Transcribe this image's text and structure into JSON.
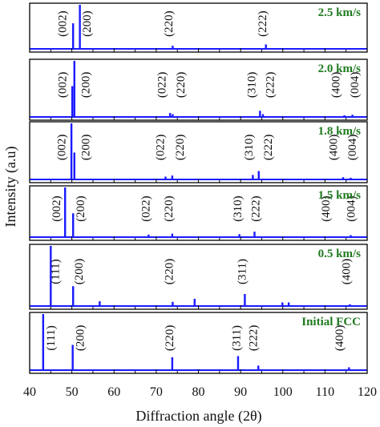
{
  "chart_data": {
    "type": "stacked-spectra",
    "xlabel": "Diffraction angle (2θ)",
    "ylabel": "Intensity (a.u)",
    "xlim": [
      40,
      120
    ],
    "xticks": [
      "40",
      "50",
      "60",
      "70",
      "80",
      "90",
      "100",
      "110",
      "120"
    ],
    "series_color": "#1a1aff",
    "label_color": "#1f7a1f",
    "panels": [
      {
        "name": "2.5 km/s",
        "peaks": [
          {
            "x": 50.3,
            "y": 0.58
          },
          {
            "x": 51.9,
            "y": 1.0
          },
          {
            "x": 73.9,
            "y": 0.07
          },
          {
            "x": 96.0,
            "y": 0.1
          }
        ],
        "labels": [
          {
            "text": "(002)",
            "x": 48.0
          },
          {
            "text": "(200)",
            "x": 53.8
          },
          {
            "text": "(220)",
            "x": 73.2
          },
          {
            "text": "(222)",
            "x": 95.4
          }
        ]
      },
      {
        "name": "2.0 km/s",
        "peaks": [
          {
            "x": 50.1,
            "y": 0.55
          },
          {
            "x": 50.6,
            "y": 1.0
          },
          {
            "x": 73.3,
            "y": 0.07
          },
          {
            "x": 73.9,
            "y": 0.05
          },
          {
            "x": 94.6,
            "y": 0.11
          },
          {
            "x": 95.3,
            "y": 0.05
          },
          {
            "x": 114.6,
            "y": 0.03
          },
          {
            "x": 116.5,
            "y": 0.04
          }
        ],
        "labels": [
          {
            "text": "(002)",
            "x": 48.0
          },
          {
            "text": "(200)",
            "x": 53.5
          },
          {
            "text": "(022)",
            "x": 71.6
          },
          {
            "text": "(220)",
            "x": 76.0
          },
          {
            "text": "(310)",
            "x": 92.8
          },
          {
            "text": "(222)",
            "x": 97.2
          },
          {
            "text": "(400)",
            "x": 112.8
          },
          {
            "text": "(004)",
            "x": 117.3
          }
        ]
      },
      {
        "name": "1.8 km/s",
        "peaks": [
          {
            "x": 49.9,
            "y": 1.0
          },
          {
            "x": 50.6,
            "y": 0.48
          },
          {
            "x": 72.2,
            "y": 0.05
          },
          {
            "x": 73.8,
            "y": 0.07
          },
          {
            "x": 92.9,
            "y": 0.08
          },
          {
            "x": 94.3,
            "y": 0.15
          },
          {
            "x": 114.3,
            "y": 0.04
          },
          {
            "x": 116.1,
            "y": 0.03
          }
        ],
        "labels": [
          {
            "text": "(002)",
            "x": 47.8
          },
          {
            "text": "(200)",
            "x": 53.5
          },
          {
            "text": "(022)",
            "x": 71.2
          },
          {
            "text": "(220)",
            "x": 75.8
          },
          {
            "text": "(310)",
            "x": 92.2
          },
          {
            "text": "(222)",
            "x": 96.7
          },
          {
            "text": "(400)",
            "x": 112.2
          },
          {
            "text": "(004)",
            "x": 116.7
          }
        ]
      },
      {
        "name": "1.5 km/s",
        "peaks": [
          {
            "x": 48.4,
            "y": 1.0
          },
          {
            "x": 50.3,
            "y": 0.48
          },
          {
            "x": 68.2,
            "y": 0.05
          },
          {
            "x": 73.8,
            "y": 0.07
          },
          {
            "x": 89.7,
            "y": 0.06
          },
          {
            "x": 93.3,
            "y": 0.11
          },
          {
            "x": 116.1,
            "y": 0.04
          }
        ],
        "labels": [
          {
            "text": "(002)",
            "x": 46.6
          },
          {
            "text": "(200)",
            "x": 52.3
          },
          {
            "text": "(022)",
            "x": 67.8
          },
          {
            "text": "(220)",
            "x": 73.2
          },
          {
            "text": "(310)",
            "x": 89.5
          },
          {
            "text": "(222)",
            "x": 93.8
          },
          {
            "text": "(400)",
            "x": 110.4
          },
          {
            "text": "(004)",
            "x": 116.4
          }
        ]
      },
      {
        "name": "0.5 km/s",
        "peaks": [
          {
            "x": 45.0,
            "y": 1.0
          },
          {
            "x": 50.3,
            "y": 0.33
          },
          {
            "x": 56.6,
            "y": 0.08
          },
          {
            "x": 73.9,
            "y": 0.07
          },
          {
            "x": 79.1,
            "y": 0.12
          },
          {
            "x": 91.0,
            "y": 0.2
          },
          {
            "x": 99.9,
            "y": 0.06
          },
          {
            "x": 101.4,
            "y": 0.06
          },
          {
            "x": 115.9,
            "y": 0.03
          }
        ],
        "labels": [
          {
            "text": "(111)",
            "x": 46.3
          },
          {
            "text": "(200)",
            "x": 51.9
          },
          {
            "text": "(220)",
            "x": 73.3
          },
          {
            "text": "(311)",
            "x": 90.6
          },
          {
            "text": "(400)",
            "x": 115.3
          }
        ]
      },
      {
        "name": "Initial FCC",
        "peaks": [
          {
            "x": 43.2,
            "y": 1.0
          },
          {
            "x": 50.2,
            "y": 0.45
          },
          {
            "x": 73.8,
            "y": 0.23
          },
          {
            "x": 89.4,
            "y": 0.25
          },
          {
            "x": 94.2,
            "y": 0.08
          },
          {
            "x": 115.7,
            "y": 0.05
          }
        ],
        "labels": [
          {
            "text": "(111)",
            "x": 45.2
          },
          {
            "text": "(200)",
            "x": 52.2
          },
          {
            "text": "(220)",
            "x": 73.4
          },
          {
            "text": "(311)",
            "x": 89.2
          },
          {
            "text": "(222)",
            "x": 93.2
          },
          {
            "text": "(400)",
            "x": 113.6
          }
        ]
      }
    ]
  }
}
